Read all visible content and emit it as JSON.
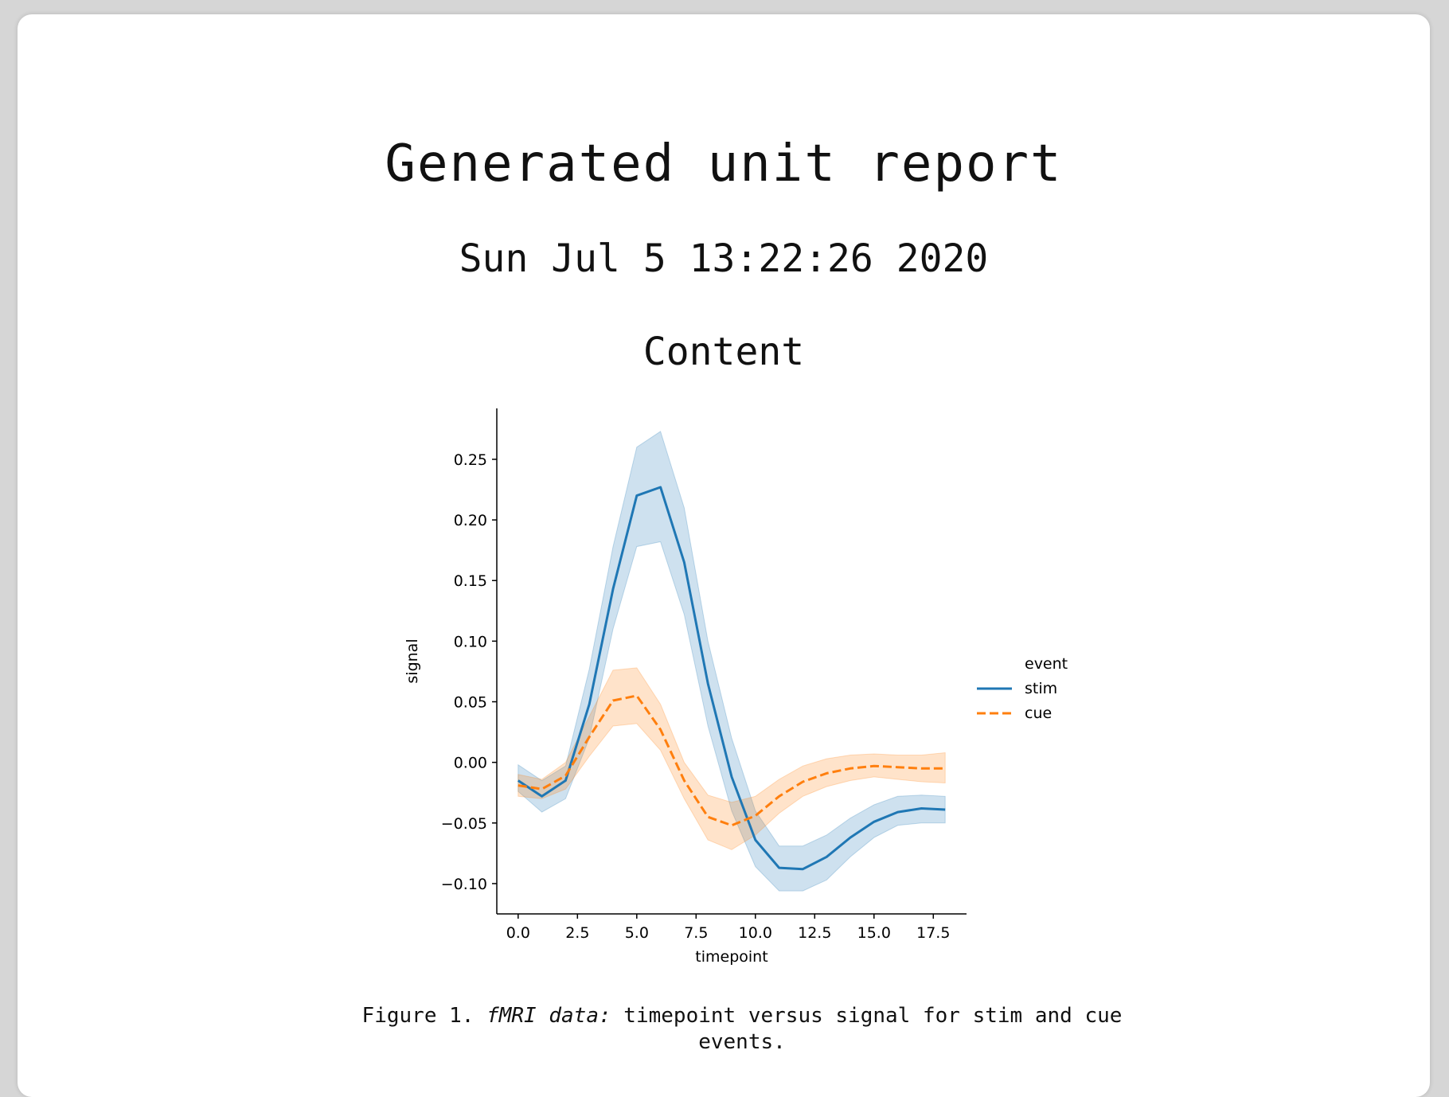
{
  "report": {
    "title": "Generated unit report",
    "date": "Sun Jul 5 13:22:26 2020",
    "section_heading": "Content"
  },
  "figure": {
    "caption_prefix": "Figure 1.",
    "caption_italic": "fMRI data:",
    "caption_rest": "timepoint versus signal for stim and cue events."
  },
  "chart_data": {
    "type": "line",
    "title": "",
    "xlabel": "timepoint",
    "ylabel": "signal",
    "xlim": [
      -0.9,
      18.9
    ],
    "ylim": [
      -0.125,
      0.292
    ],
    "x_ticks": [
      0.0,
      2.5,
      5.0,
      7.5,
      10.0,
      12.5,
      15.0,
      17.5
    ],
    "x_tick_labels": [
      "0.0",
      "2.5",
      "5.0",
      "7.5",
      "10.0",
      "12.5",
      "15.0",
      "17.5"
    ],
    "y_ticks": [
      -0.1,
      -0.05,
      0.0,
      0.05,
      0.1,
      0.15,
      0.2,
      0.25
    ],
    "y_tick_labels": [
      "−0.10",
      "−0.05",
      "0.00",
      "0.05",
      "0.10",
      "0.15",
      "0.20",
      "0.25"
    ],
    "grid": false,
    "legend": {
      "title": "event",
      "placement": "right"
    },
    "x": [
      0,
      1,
      2,
      3,
      4,
      5,
      6,
      7,
      8,
      9,
      10,
      11,
      12,
      13,
      14,
      15,
      16,
      17,
      18
    ],
    "series": [
      {
        "name": "stim",
        "color": "#1f77b4",
        "dash": "solid",
        "values": [
          -0.015,
          -0.028,
          -0.015,
          0.048,
          0.143,
          0.22,
          0.227,
          0.165,
          0.065,
          -0.012,
          -0.064,
          -0.087,
          -0.088,
          -0.078,
          -0.062,
          -0.049,
          -0.041,
          -0.038,
          -0.039
        ],
        "ci_low": [
          -0.024,
          -0.041,
          -0.03,
          0.02,
          0.11,
          0.178,
          0.182,
          0.122,
          0.03,
          -0.04,
          -0.086,
          -0.106,
          -0.106,
          -0.097,
          -0.078,
          -0.062,
          -0.052,
          -0.05,
          -0.05
        ],
        "ci_high": [
          -0.002,
          -0.015,
          -0.003,
          0.077,
          0.178,
          0.26,
          0.273,
          0.21,
          0.1,
          0.02,
          -0.04,
          -0.069,
          -0.069,
          -0.06,
          -0.046,
          -0.035,
          -0.028,
          -0.027,
          -0.028
        ]
      },
      {
        "name": "cue",
        "color": "#ff7f0e",
        "dash": "dashed",
        "values": [
          -0.019,
          -0.022,
          -0.011,
          0.021,
          0.051,
          0.055,
          0.027,
          -0.015,
          -0.045,
          -0.052,
          -0.044,
          -0.028,
          -0.016,
          -0.009,
          -0.005,
          -0.003,
          -0.004,
          -0.005,
          -0.005
        ],
        "ci_low": [
          -0.028,
          -0.03,
          -0.022,
          0.005,
          0.03,
          0.032,
          0.01,
          -0.03,
          -0.064,
          -0.072,
          -0.06,
          -0.042,
          -0.028,
          -0.02,
          -0.015,
          -0.012,
          -0.014,
          -0.016,
          -0.017
        ],
        "ci_high": [
          -0.01,
          -0.014,
          0.0,
          0.038,
          0.076,
          0.078,
          0.048,
          0.0,
          -0.027,
          -0.033,
          -0.028,
          -0.014,
          -0.003,
          0.003,
          0.006,
          0.007,
          0.006,
          0.006,
          0.008
        ]
      }
    ]
  }
}
